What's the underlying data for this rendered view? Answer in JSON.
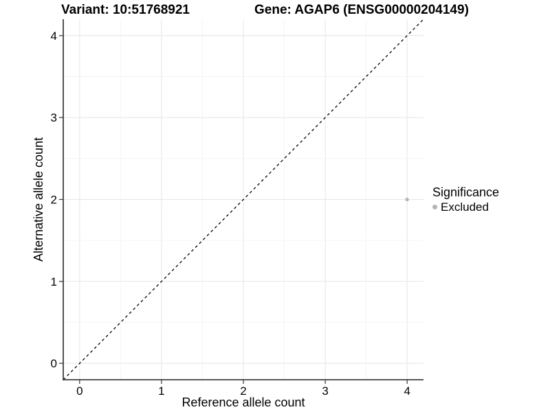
{
  "header": {
    "variant_title": "Variant: 10:51768921",
    "gene_title": "Gene: AGAP6 (ENSG00000204149)"
  },
  "chart_data": {
    "type": "scatter",
    "xlabel": "Reference allele count",
    "ylabel": "Alternative allele count",
    "xlim": [
      -0.2,
      4.2
    ],
    "ylim": [
      -0.2,
      4.2
    ],
    "x_ticks": [
      0,
      1,
      2,
      3,
      4
    ],
    "x_tick_labels": [
      "0",
      "1",
      "2",
      "3",
      "4"
    ],
    "y_ticks": [
      0,
      1,
      2,
      3,
      4
    ],
    "y_tick_labels": [
      "0",
      "1",
      "2",
      "3",
      "4"
    ],
    "x_minor_ticks": [
      0.5,
      1.5,
      2.5,
      3.5
    ],
    "y_minor_ticks": [
      0.5,
      1.5,
      2.5,
      3.5
    ],
    "grid": true,
    "identity_line": {
      "style": "dashed",
      "from": [
        -0.2,
        -0.2
      ],
      "to": [
        4.2,
        4.2
      ],
      "color": "#000000"
    },
    "series": [
      {
        "name": "Excluded",
        "color": "#b4b4b4",
        "point_radius": 2.6,
        "points": [
          {
            "x": 4,
            "y": 2
          }
        ]
      }
    ],
    "legend": {
      "title": "Significance",
      "position": "right",
      "items": [
        {
          "label": "Excluded",
          "color": "#b4b4b4"
        }
      ]
    }
  },
  "colors": {
    "background": "#ffffff",
    "grid_major": "#e9e9e9",
    "grid_minor": "#f4f4f4",
    "axis_line": "#3f3f3f",
    "tick_mark": "#333333",
    "text": "#000000"
  }
}
